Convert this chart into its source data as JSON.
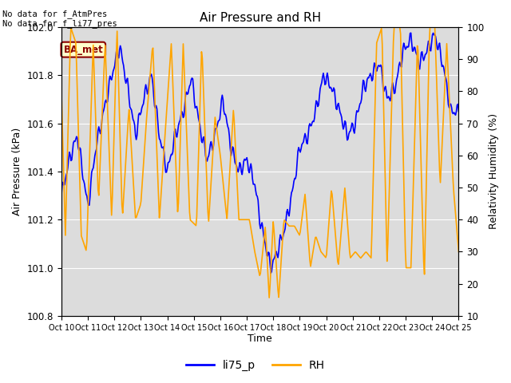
{
  "title": "Air Pressure and RH",
  "xlabel": "Time",
  "ylabel_left": "Air Pressure (kPa)",
  "ylabel_right": "Relativity Humidity (%)",
  "annotation_line1": "No data for f_AtmPres",
  "annotation_line2": "No data for f_li77_pres",
  "box_label": "BA_met",
  "legend_labels": [
    "li75_p",
    "RH"
  ],
  "line_color_blue": "#0000FF",
  "line_color_orange": "#FFA500",
  "xlim_start": 10,
  "xlim_end": 25,
  "ylim_left": [
    100.8,
    102.0
  ],
  "ylim_right": [
    10,
    100
  ],
  "xtick_positions": [
    10,
    11,
    12,
    13,
    14,
    15,
    16,
    17,
    18,
    19,
    20,
    21,
    22,
    23,
    24,
    25
  ],
  "xtick_labels": [
    "Oct 10",
    "Oct 11",
    "Oct 12",
    "Oct 13",
    "Oct 14",
    "Oct 15",
    "Oct 16",
    "Oct 17",
    "Oct 18",
    "Oct 19",
    "Oct 20",
    "Oct 21",
    "Oct 22",
    "Oct 23",
    "Oct 24",
    "Oct 25"
  ],
  "yticks_left": [
    100.8,
    101.0,
    101.2,
    101.4,
    101.6,
    101.8,
    102.0
  ],
  "yticks_right": [
    10,
    20,
    30,
    40,
    50,
    60,
    70,
    80,
    90,
    100
  ],
  "background_color": "#DCDCDC",
  "fig_bg": "#FFFFFF",
  "grid_color": "#FFFFFF",
  "linewidth": 1.2
}
